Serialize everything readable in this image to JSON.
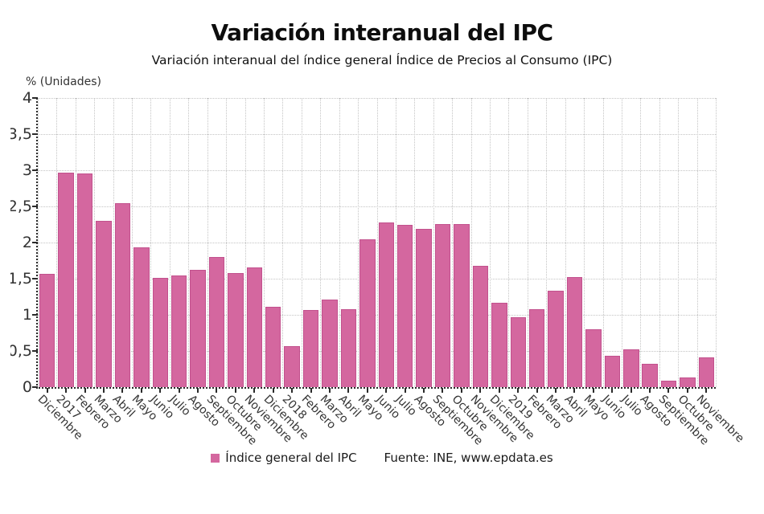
{
  "colors": {
    "bar_fill": "#d4679f",
    "bar_edge": "#c2518d",
    "grid": "#c4c4c4",
    "axis": "#2a2a2a",
    "text": "#333333"
  },
  "chart_data": {
    "type": "bar",
    "title": "Variación interanual del IPC",
    "subtitle": "Variación interanual del índice general Índice de Precios al Consumo (IPC)",
    "ylabel": "% (Unidades)",
    "ylim": [
      0,
      4
    ],
    "grid": true,
    "legend_label": "Índice general del IPC",
    "legend_position": "bottom",
    "source": "Fuente: INE, www.epdata.es",
    "yticks": [
      {
        "v": 0,
        "label": "0"
      },
      {
        "v": 0.5,
        "label": "0,5"
      },
      {
        "v": 1,
        "label": "1"
      },
      {
        "v": 1.5,
        "label": "1,5"
      },
      {
        "v": 2,
        "label": "2"
      },
      {
        "v": 2.5,
        "label": "2,5"
      },
      {
        "v": 3,
        "label": "3"
      },
      {
        "v": 3.5,
        "label": "3,5"
      },
      {
        "v": 4,
        "label": "4"
      }
    ],
    "categories": [
      "Diciembre",
      "2017",
      "Febrero",
      "Marzo",
      "Abril",
      "Mayo",
      "Junio",
      "Julio",
      "Agosto",
      "Septiembre",
      "Octubre",
      "Noviembre",
      "Diciembre",
      "2018",
      "Febrero",
      "Marzo",
      "Abril",
      "Mayo",
      "Junio",
      "Julio",
      "Agosto",
      "Septiembre",
      "Octubre",
      "Noviembre",
      "Diciembre",
      "2019",
      "Febrero",
      "Marzo",
      "Abril",
      "Mayo",
      "Junio",
      "Julio",
      "Agosto",
      "Septiembre",
      "Octubre",
      "Noviembre"
    ],
    "values": [
      1.57,
      2.97,
      2.96,
      2.3,
      2.55,
      1.93,
      1.51,
      1.55,
      1.62,
      1.8,
      1.58,
      1.66,
      1.11,
      0.57,
      1.07,
      1.21,
      1.08,
      2.05,
      2.28,
      2.25,
      2.19,
      2.26,
      2.26,
      1.68,
      1.17,
      0.97,
      1.08,
      1.33,
      1.52,
      0.8,
      0.43,
      0.52,
      0.32,
      0.09,
      0.13,
      0.41
    ]
  }
}
